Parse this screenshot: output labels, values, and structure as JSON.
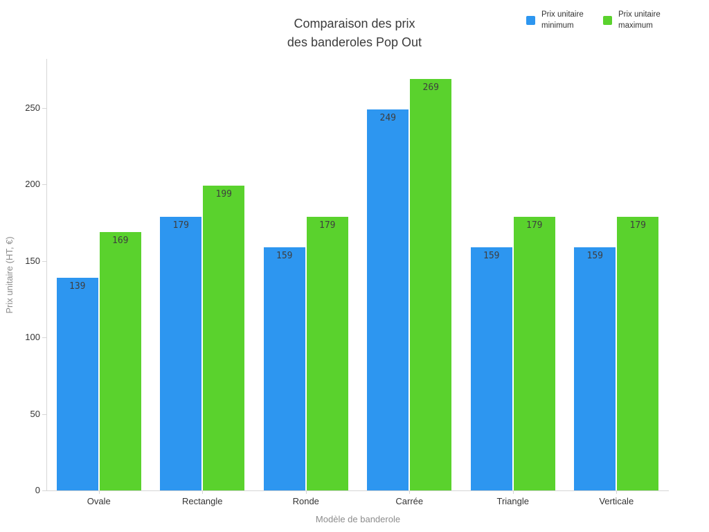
{
  "title": "Comparaison des prix\ndes banderoles Pop Out",
  "chart_data": {
    "type": "bar",
    "title": "Comparaison des prix des banderoles Pop Out",
    "categories": [
      "Ovale",
      "Rectangle",
      "Ronde",
      "Carrée",
      "Triangle",
      "Verticale"
    ],
    "series": [
      {
        "name": "Prix unitaire minimum",
        "color": "#2d96f0",
        "values": [
          139,
          179,
          159,
          249,
          159,
          159
        ]
      },
      {
        "name": "Prix unitaire maximum",
        "color": "#5ad22d",
        "values": [
          169,
          199,
          179,
          269,
          179,
          179
        ]
      }
    ],
    "xlabel": "Modèle de banderole",
    "ylabel": "Prix unitaire (HT, €)",
    "yticks": [
      0,
      50,
      100,
      150,
      200,
      250
    ],
    "ylim": [
      0,
      282
    ],
    "grid": false,
    "legend_position": "top-right",
    "bar_value_labels": true,
    "axis_color": "#d6d6d6",
    "label_color": "#333333"
  }
}
